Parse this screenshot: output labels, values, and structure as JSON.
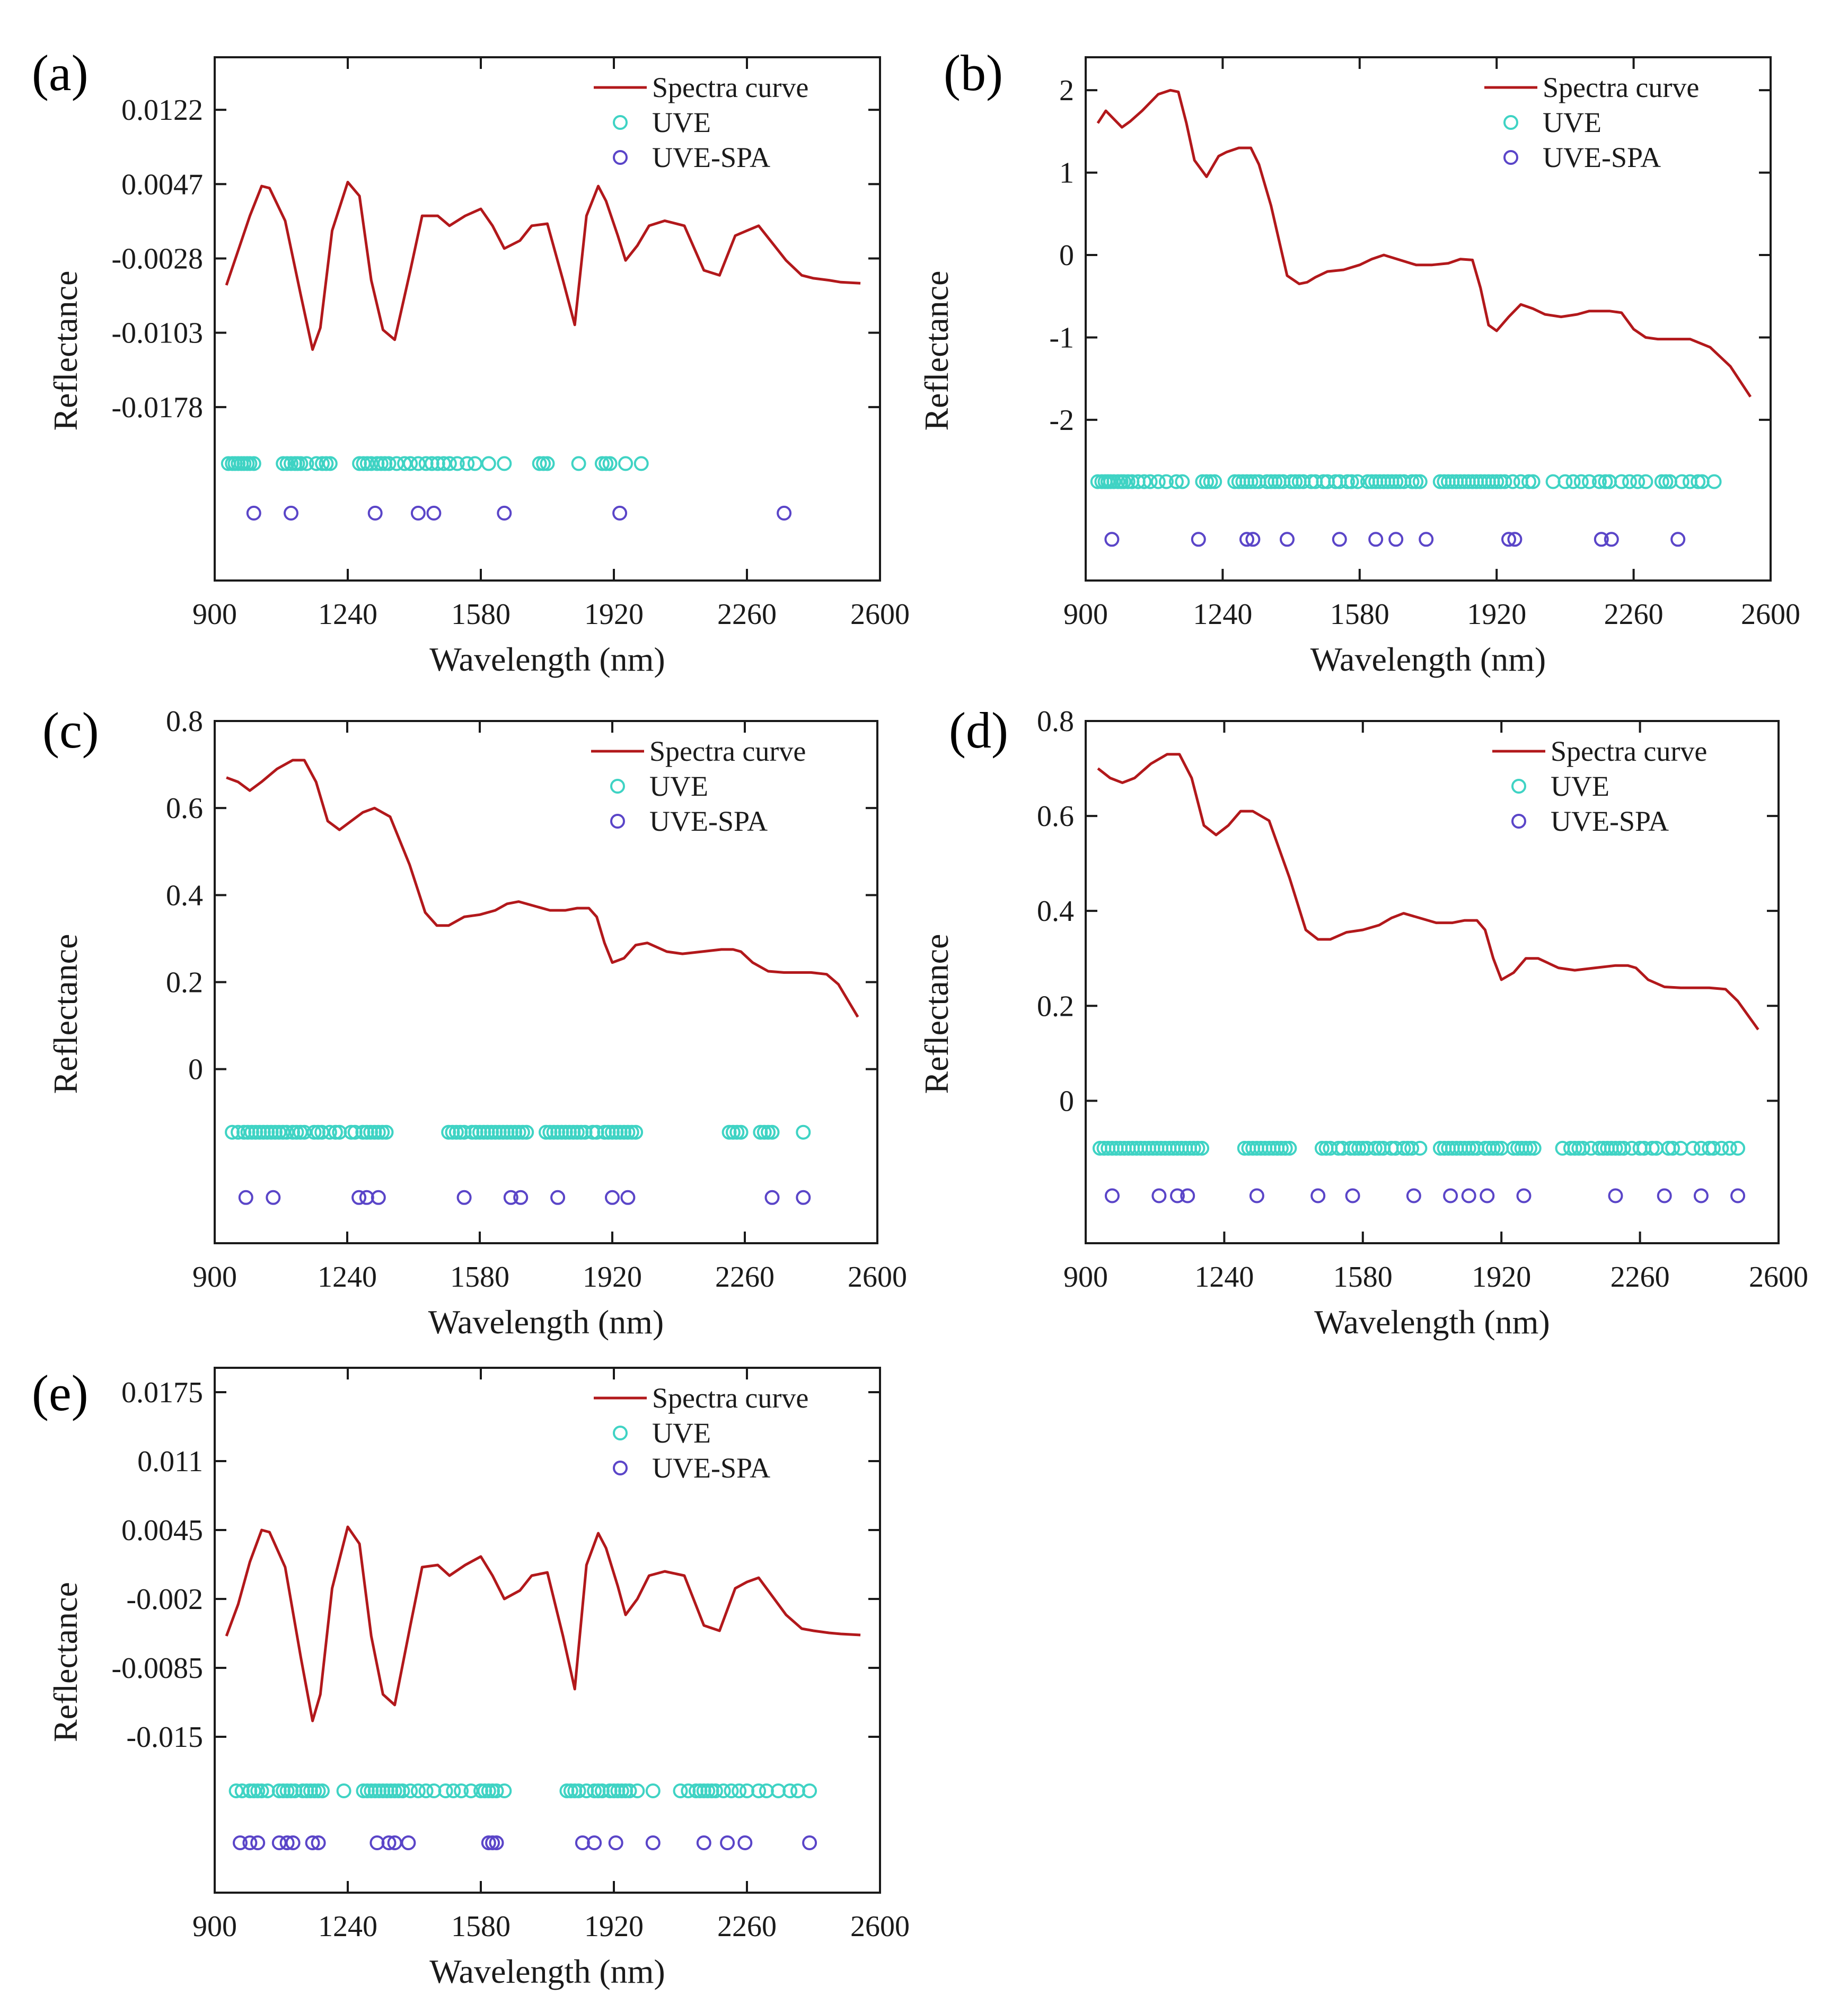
{
  "figure": {
    "colors": {
      "spectra": "#b2181b",
      "uve": "#3fd3c4",
      "uvespa": "#5a45c8",
      "axis": "#1a1a1a"
    },
    "legend": [
      "Spectra curve",
      "UVE",
      "UVE-SPA"
    ]
  },
  "chart_data": [
    {
      "panel": "(a)",
      "type": "line",
      "xlabel": "Wavelength (nm)",
      "ylabel": "Reflectance",
      "xlim": [
        900,
        2600
      ],
      "ylim": [
        -0.0353,
        0.0175
      ],
      "xticks": [
        "900",
        "1240",
        "1580",
        "1920",
        "2260",
        "2600"
      ],
      "yticks": [
        {
          "v": 0.0122,
          "label": "0.0122"
        },
        {
          "v": 0.0047,
          "label": "0.0047"
        },
        {
          "v": -0.0028,
          "label": "-0.0028"
        },
        {
          "v": -0.0103,
          "label": "-0.0103"
        },
        {
          "v": -0.0178,
          "label": "-0.0178"
        }
      ],
      "spectra": {
        "x": [
          930,
          960,
          990,
          1020,
          1040,
          1080,
          1120,
          1150,
          1170,
          1200,
          1240,
          1270,
          1300,
          1330,
          1360,
          1400,
          1430,
          1470,
          1500,
          1540,
          1580,
          1610,
          1640,
          1680,
          1710,
          1750,
          1790,
          1820,
          1850,
          1880,
          1900,
          1930,
          1950,
          1980,
          2010,
          2050,
          2100,
          2150,
          2190,
          2230,
          2260,
          2290,
          2330,
          2360,
          2400,
          2430,
          2470,
          2500,
          2550
        ],
        "y": [
          -0.0055,
          -0.002,
          0.0015,
          0.0045,
          0.0043,
          0.001,
          -0.0065,
          -0.012,
          -0.0098,
          0,
          0.0049,
          0.0035,
          -0.005,
          -0.01,
          -0.011,
          -0.004,
          0.0015,
          0.0015,
          0.0005,
          0.0015,
          0.0022,
          0.0005,
          -0.0018,
          -0.001,
          0.0005,
          0.0007,
          -0.005,
          -0.0095,
          0.0015,
          0.0045,
          0.003,
          -0.0005,
          -0.003,
          -0.0015,
          0.0005,
          0.001,
          0.0005,
          -0.004,
          -0.0045,
          -0.0005,
          0,
          0.0005,
          -0.0015,
          -0.003,
          -0.0045,
          -0.0048,
          -0.005,
          -0.0052,
          -0.0053
        ]
      },
      "uve": [
        935,
        945,
        952,
        960,
        968,
        975,
        983,
        990,
        1000,
        1075,
        1085,
        1095,
        1105,
        1112,
        1120,
        1135,
        1160,
        1175,
        1185,
        1195,
        1270,
        1280,
        1290,
        1300,
        1315,
        1325,
        1335,
        1345,
        1365,
        1385,
        1400,
        1420,
        1440,
        1455,
        1470,
        1485,
        1500,
        1520,
        1545,
        1565,
        1600,
        1640,
        1730,
        1740,
        1750,
        1830,
        1890,
        1900,
        1910,
        1950,
        1990
      ],
      "uvespa": [
        1000,
        1095,
        1310,
        1420,
        1460,
        1640,
        1935,
        2355
      ],
      "uve_y": -0.0235,
      "uvespa_y": -0.0285
    },
    {
      "panel": "(b)",
      "type": "line",
      "xlabel": "Wavelength (nm)",
      "ylabel": "Reflectance",
      "xlim": [
        900,
        2600
      ],
      "ylim": [
        -3.95,
        2.4
      ],
      "xticks": [
        "900",
        "1240",
        "1580",
        "1920",
        "2260",
        "2600"
      ],
      "yticks": [
        {
          "v": 2,
          "label": "2"
        },
        {
          "v": 1,
          "label": "1"
        },
        {
          "v": 0,
          "label": "0"
        },
        {
          "v": -1,
          "label": "-1"
        },
        {
          "v": -2,
          "label": "-2"
        }
      ],
      "spectra": {
        "x": [
          930,
          950,
          970,
          990,
          1010,
          1040,
          1080,
          1110,
          1130,
          1150,
          1170,
          1200,
          1230,
          1250,
          1280,
          1310,
          1330,
          1360,
          1400,
          1430,
          1450,
          1470,
          1500,
          1540,
          1580,
          1610,
          1640,
          1680,
          1720,
          1760,
          1800,
          1830,
          1860,
          1880,
          1900,
          1920,
          1950,
          1980,
          2010,
          2040,
          2080,
          2120,
          2150,
          2180,
          2200,
          2230,
          2260,
          2290,
          2320,
          2350,
          2400,
          2450,
          2500,
          2550
        ],
        "y": [
          1.6,
          1.75,
          1.65,
          1.55,
          1.62,
          1.75,
          1.95,
          2.0,
          1.98,
          1.6,
          1.15,
          0.95,
          1.2,
          1.25,
          1.3,
          1.3,
          1.1,
          0.6,
          -0.25,
          -0.35,
          -0.33,
          -0.27,
          -0.2,
          -0.18,
          -0.12,
          -0.05,
          0,
          -0.06,
          -0.12,
          -0.12,
          -0.1,
          -0.05,
          -0.06,
          -0.4,
          -0.85,
          -0.92,
          -0.75,
          -0.6,
          -0.65,
          -0.72,
          -0.75,
          -0.72,
          -0.68,
          -0.68,
          -0.68,
          -0.7,
          -0.9,
          -1.0,
          -1.02,
          -1.02,
          -1.02,
          -1.12,
          -1.35,
          -1.72
        ]
      },
      "uve": [
        930,
        940,
        948,
        955,
        962,
        970,
        980,
        988,
        995,
        1005,
        1015,
        1030,
        1045,
        1060,
        1080,
        1100,
        1125,
        1140,
        1190,
        1200,
        1210,
        1220,
        1270,
        1280,
        1290,
        1300,
        1310,
        1320,
        1330,
        1350,
        1360,
        1370,
        1380,
        1390,
        1410,
        1420,
        1430,
        1440,
        1460,
        1470,
        1490,
        1500,
        1520,
        1530,
        1550,
        1560,
        1575,
        1600,
        1610,
        1620,
        1630,
        1640,
        1650,
        1660,
        1670,
        1680,
        1690,
        1710,
        1720,
        1730,
        1780,
        1790,
        1800,
        1810,
        1820,
        1830,
        1840,
        1850,
        1860,
        1870,
        1880,
        1890,
        1900,
        1910,
        1920,
        1930,
        1940,
        1960,
        1980,
        2000,
        2010,
        2060,
        2090,
        2110,
        2130,
        2150,
        2175,
        2190,
        2200,
        2230,
        2250,
        2270,
        2290,
        2330,
        2340,
        2350,
        2380,
        2400,
        2420,
        2430,
        2460
      ],
      "uvespa": [
        965,
        1180,
        1300,
        1315,
        1400,
        1530,
        1620,
        1670,
        1745,
        1950,
        1965,
        2180,
        2205,
        2370
      ],
      "uve_y": -2.75,
      "uvespa_y": -3.45
    },
    {
      "panel": "(c)",
      "type": "line",
      "xlabel": "Wavelength (nm)",
      "ylabel": "Reflectance",
      "xlim": [
        900,
        2600
      ],
      "ylim": [
        -0.4,
        0.8
      ],
      "xticks": [
        "900",
        "1240",
        "1580",
        "1920",
        "2260",
        "2600"
      ],
      "yticks": [
        {
          "v": 0.8,
          "label": "0.8"
        },
        {
          "v": 0.6,
          "label": "0.6"
        },
        {
          "v": 0.4,
          "label": "0.4"
        },
        {
          "v": 0.2,
          "label": "0.2"
        },
        {
          "v": 0,
          "label": "0"
        }
      ],
      "spectra": {
        "x": [
          930,
          960,
          990,
          1020,
          1060,
          1100,
          1130,
          1160,
          1190,
          1220,
          1250,
          1280,
          1310,
          1350,
          1400,
          1440,
          1470,
          1500,
          1540,
          1580,
          1620,
          1650,
          1680,
          1720,
          1760,
          1800,
          1830,
          1860,
          1880,
          1900,
          1920,
          1950,
          1980,
          2010,
          2060,
          2100,
          2150,
          2200,
          2230,
          2250,
          2280,
          2320,
          2360,
          2400,
          2430,
          2470,
          2500,
          2550
        ],
        "y": [
          0.67,
          0.66,
          0.64,
          0.66,
          0.69,
          0.71,
          0.71,
          0.66,
          0.57,
          0.55,
          0.57,
          0.59,
          0.6,
          0.58,
          0.47,
          0.36,
          0.33,
          0.33,
          0.35,
          0.355,
          0.365,
          0.38,
          0.385,
          0.375,
          0.365,
          0.365,
          0.37,
          0.37,
          0.35,
          0.29,
          0.245,
          0.255,
          0.285,
          0.29,
          0.27,
          0.265,
          0.27,
          0.275,
          0.275,
          0.27,
          0.245,
          0.225,
          0.222,
          0.222,
          0.222,
          0.218,
          0.195,
          0.12
        ]
      },
      "uve": [
        945,
        960,
        975,
        985,
        995,
        1005,
        1015,
        1025,
        1035,
        1045,
        1055,
        1065,
        1075,
        1085,
        1100,
        1110,
        1120,
        1130,
        1155,
        1165,
        1175,
        1195,
        1210,
        1220,
        1250,
        1260,
        1280,
        1290,
        1300,
        1310,
        1320,
        1330,
        1340,
        1500,
        1510,
        1520,
        1530,
        1540,
        1560,
        1570,
        1580,
        1590,
        1600,
        1610,
        1620,
        1630,
        1640,
        1650,
        1660,
        1670,
        1680,
        1690,
        1700,
        1750,
        1760,
        1770,
        1780,
        1790,
        1800,
        1810,
        1820,
        1830,
        1840,
        1850,
        1870,
        1880,
        1900,
        1910,
        1920,
        1930,
        1940,
        1950,
        1960,
        1970,
        1980,
        2220,
        2230,
        2240,
        2250,
        2300,
        2310,
        2320,
        2330,
        2410
      ],
      "uvespa": [
        980,
        1050,
        1270,
        1290,
        1320,
        1540,
        1660,
        1685,
        1780,
        1920,
        1960,
        2330,
        2410
      ],
      "uve_y": -0.145,
      "uvespa_y": -0.295
    },
    {
      "panel": "(d)",
      "type": "line",
      "xlabel": "Wavelength (nm)",
      "ylabel": "Reflectance",
      "xlim": [
        900,
        2600
      ],
      "ylim": [
        -0.3,
        0.8
      ],
      "xticks": [
        "900",
        "1240",
        "1580",
        "1920",
        "2260",
        "2600"
      ],
      "yticks": [
        {
          "v": 0.8,
          "label": "0.8"
        },
        {
          "v": 0.6,
          "label": "0.6"
        },
        {
          "v": 0.4,
          "label": "0.4"
        },
        {
          "v": 0.2,
          "label": "0.2"
        },
        {
          "v": 0,
          "label": "0"
        }
      ],
      "spectra": {
        "x": [
          930,
          960,
          990,
          1020,
          1060,
          1100,
          1130,
          1160,
          1190,
          1220,
          1250,
          1280,
          1310,
          1350,
          1400,
          1440,
          1470,
          1500,
          1540,
          1580,
          1620,
          1650,
          1680,
          1720,
          1760,
          1800,
          1830,
          1860,
          1880,
          1900,
          1920,
          1950,
          1980,
          2010,
          2060,
          2100,
          2150,
          2200,
          2230,
          2250,
          2280,
          2320,
          2360,
          2400,
          2430,
          2470,
          2500,
          2550
        ],
        "y": [
          0.7,
          0.68,
          0.67,
          0.68,
          0.71,
          0.73,
          0.73,
          0.68,
          0.58,
          0.56,
          0.58,
          0.61,
          0.61,
          0.59,
          0.47,
          0.36,
          0.34,
          0.34,
          0.355,
          0.36,
          0.37,
          0.385,
          0.395,
          0.385,
          0.375,
          0.375,
          0.38,
          0.38,
          0.36,
          0.3,
          0.255,
          0.27,
          0.3,
          0.3,
          0.28,
          0.275,
          0.28,
          0.285,
          0.285,
          0.28,
          0.255,
          0.24,
          0.238,
          0.238,
          0.238,
          0.235,
          0.21,
          0.15
        ]
      },
      "uve": [
        935,
        945,
        955,
        965,
        975,
        985,
        995,
        1005,
        1015,
        1025,
        1035,
        1045,
        1055,
        1065,
        1075,
        1085,
        1095,
        1105,
        1115,
        1125,
        1135,
        1145,
        1155,
        1165,
        1175,
        1185,
        1290,
        1300,
        1310,
        1320,
        1330,
        1340,
        1350,
        1360,
        1370,
        1380,
        1390,
        1400,
        1480,
        1490,
        1500,
        1520,
        1530,
        1550,
        1560,
        1570,
        1580,
        1590,
        1610,
        1620,
        1630,
        1650,
        1660,
        1680,
        1690,
        1700,
        1720,
        1770,
        1780,
        1790,
        1800,
        1810,
        1820,
        1830,
        1840,
        1850,
        1860,
        1880,
        1890,
        1900,
        1910,
        1920,
        1950,
        1960,
        1970,
        1980,
        1990,
        2000,
        2070,
        2090,
        2100,
        2110,
        2120,
        2140,
        2160,
        2170,
        2180,
        2190,
        2200,
        2210,
        2220,
        2240,
        2260,
        2270,
        2290,
        2300,
        2330,
        2340,
        2360,
        2390,
        2410,
        2430,
        2440,
        2460,
        2480,
        2500
      ],
      "uvespa": [
        965,
        1080,
        1125,
        1150,
        1320,
        1470,
        1555,
        1705,
        1795,
        1840,
        1885,
        1975,
        2200,
        2320,
        2410,
        2500
      ],
      "uve_y": -0.1,
      "uvespa_y": -0.2
    },
    {
      "panel": "(e)",
      "type": "line",
      "xlabel": "Wavelength (nm)",
      "ylabel": "Reflectance",
      "xlim": [
        900,
        2600
      ],
      "ylim": [
        -0.0297,
        0.0198
      ],
      "xticks": [
        "900",
        "1240",
        "1580",
        "1920",
        "2260",
        "2600"
      ],
      "yticks": [
        {
          "v": 0.0175,
          "label": "0.0175"
        },
        {
          "v": 0.011,
          "label": "0.011"
        },
        {
          "v": 0.0045,
          "label": "0.0045"
        },
        {
          "v": -0.002,
          "label": "-0.002"
        },
        {
          "v": -0.0085,
          "label": "-0.0085"
        },
        {
          "v": -0.015,
          "label": "-0.015"
        }
      ],
      "spectra": {
        "x": [
          930,
          960,
          990,
          1020,
          1040,
          1080,
          1120,
          1150,
          1170,
          1200,
          1240,
          1270,
          1300,
          1330,
          1360,
          1400,
          1430,
          1470,
          1500,
          1540,
          1580,
          1610,
          1640,
          1680,
          1710,
          1750,
          1790,
          1820,
          1850,
          1880,
          1900,
          1930,
          1950,
          1980,
          2010,
          2050,
          2100,
          2150,
          2190,
          2230,
          2260,
          2290,
          2330,
          2360,
          2400,
          2430,
          2470,
          2500,
          2550
        ],
        "y": [
          -0.0055,
          -0.0025,
          0.0015,
          0.0045,
          0.0043,
          0.001,
          -0.0075,
          -0.0135,
          -0.011,
          -0.001,
          0.0048,
          0.0032,
          -0.0055,
          -0.011,
          -0.012,
          -0.0045,
          0.001,
          0.0012,
          0.0002,
          0.0012,
          0.002,
          0.0002,
          -0.002,
          -0.0012,
          0.0002,
          0.0005,
          -0.0055,
          -0.0105,
          0.0012,
          0.0042,
          0.0028,
          -0.0008,
          -0.0035,
          -0.002,
          0.0002,
          0.0006,
          0.0002,
          -0.0045,
          -0.005,
          -0.001,
          -0.0004,
          0,
          -0.002,
          -0.0035,
          -0.0048,
          -0.005,
          -0.0052,
          -0.0053,
          -0.0054
        ]
      },
      "uve": [
        955,
        970,
        990,
        1000,
        1010,
        1020,
        1035,
        1065,
        1075,
        1085,
        1095,
        1105,
        1125,
        1135,
        1145,
        1155,
        1165,
        1175,
        1230,
        1280,
        1290,
        1300,
        1310,
        1320,
        1330,
        1340,
        1350,
        1360,
        1370,
        1380,
        1400,
        1420,
        1440,
        1460,
        1490,
        1510,
        1530,
        1555,
        1580,
        1590,
        1600,
        1610,
        1620,
        1640,
        1800,
        1810,
        1820,
        1830,
        1850,
        1870,
        1880,
        1890,
        1910,
        1920,
        1930,
        1940,
        1950,
        1960,
        1980,
        2020,
        2090,
        2110,
        2130,
        2140,
        2150,
        2160,
        2170,
        2180,
        2200,
        2220,
        2240,
        2260,
        2290,
        2310,
        2340,
        2370,
        2390,
        2420
      ],
      "uvespa": [
        965,
        990,
        1010,
        1065,
        1085,
        1100,
        1150,
        1165,
        1315,
        1345,
        1360,
        1395,
        1600,
        1610,
        1620,
        1840,
        1870,
        1925,
        2020,
        2150,
        2210,
        2255,
        2420
      ],
      "uve_y": -0.0201,
      "uvespa_y": -0.025
    }
  ]
}
